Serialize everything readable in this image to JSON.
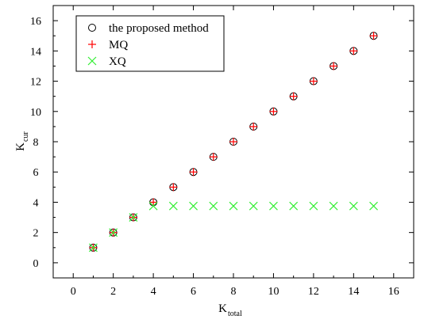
{
  "chart_data": {
    "type": "scatter",
    "xlabel": {
      "main": "K",
      "sub": "total"
    },
    "ylabel": {
      "main": "K",
      "sub": "cur"
    },
    "xlim": [
      -1,
      17
    ],
    "ylim": [
      -1,
      17
    ],
    "xticks": [
      0,
      2,
      4,
      6,
      8,
      10,
      12,
      14,
      16
    ],
    "yticks": [
      0,
      2,
      4,
      6,
      8,
      10,
      12,
      14,
      16
    ],
    "legend_position": "top-left",
    "series": [
      {
        "name": "the proposed method",
        "marker": "circle",
        "color": "#000000",
        "x": [
          1,
          2,
          3,
          4,
          5,
          6,
          7,
          8,
          9,
          10,
          11,
          12,
          13,
          14,
          15
        ],
        "y": [
          1,
          2,
          3,
          4,
          5,
          6,
          7,
          8,
          9,
          10,
          11,
          12,
          13,
          14,
          15
        ]
      },
      {
        "name": "MQ",
        "marker": "plus",
        "color": "#ff0000",
        "x": [
          1,
          2,
          3,
          4,
          5,
          6,
          7,
          8,
          9,
          10,
          11,
          12,
          13,
          14,
          15
        ],
        "y": [
          1,
          2,
          3,
          4,
          5,
          6,
          7,
          8,
          9,
          10,
          11,
          12,
          13,
          14,
          15
        ]
      },
      {
        "name": "XQ",
        "marker": "cross",
        "color": "#33ee33",
        "x": [
          1,
          2,
          3,
          4,
          5,
          6,
          7,
          8,
          9,
          10,
          11,
          12,
          13,
          14,
          15
        ],
        "y": [
          1,
          2,
          3,
          3.75,
          3.75,
          3.75,
          3.75,
          3.75,
          3.75,
          3.75,
          3.75,
          3.75,
          3.75,
          3.75,
          3.75
        ]
      }
    ]
  }
}
